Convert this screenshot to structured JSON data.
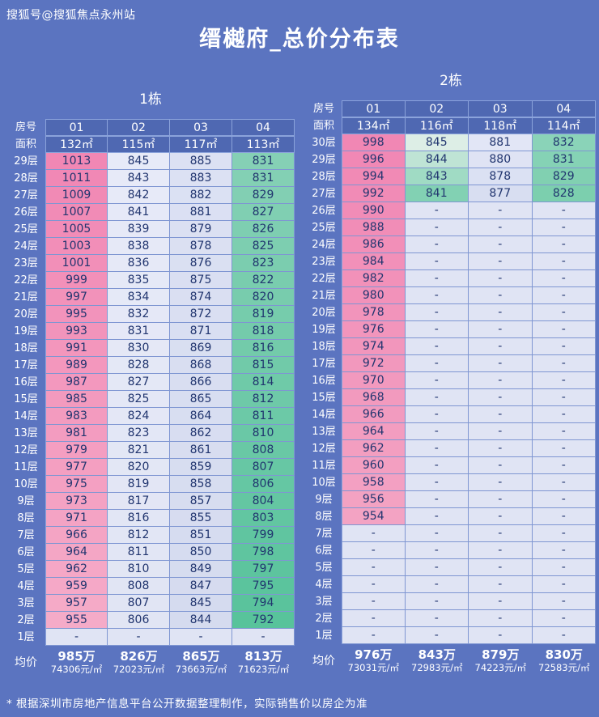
{
  "watermark": "搜狐号@搜狐焦点永州站",
  "title": "缙樾府_总价分布表",
  "footnote": "* 根据深圳市房地产信息平台公开数据整理制作，实际销售价以房企为准",
  "labels": {
    "room": "房号",
    "area": "面积",
    "avg": "均价"
  },
  "colors": {
    "background": "#5b74c0",
    "header_cell_bg": "#4f68b2",
    "grid_line": "#7f96d2",
    "cell_text": "#21356f",
    "empty_cell": "#e0e4f4",
    "text_white": "#ffffff"
  },
  "chart_data": [
    {
      "type": "table",
      "name": "1栋",
      "units": [
        "01",
        "02",
        "03",
        "04"
      ],
      "areas": [
        "132㎡",
        "115㎡",
        "117㎡",
        "113㎡"
      ],
      "floors": [
        "29层",
        "28层",
        "27层",
        "26层",
        "25层",
        "24层",
        "23层",
        "22层",
        "21层",
        "20层",
        "19层",
        "18层",
        "17层",
        "16层",
        "15层",
        "14层",
        "13层",
        "12层",
        "11层",
        "10层",
        "9层",
        "8层",
        "7层",
        "6层",
        "5层",
        "4层",
        "3层",
        "2层",
        "1层"
      ],
      "rows": [
        [
          1013,
          845,
          885,
          831
        ],
        [
          1011,
          843,
          883,
          831
        ],
        [
          1009,
          842,
          882,
          829
        ],
        [
          1007,
          841,
          881,
          827
        ],
        [
          1005,
          839,
          879,
          826
        ],
        [
          1003,
          838,
          878,
          825
        ],
        [
          1001,
          836,
          876,
          823
        ],
        [
          999,
          835,
          875,
          822
        ],
        [
          997,
          834,
          874,
          820
        ],
        [
          995,
          832,
          872,
          819
        ],
        [
          993,
          831,
          871,
          818
        ],
        [
          991,
          830,
          869,
          816
        ],
        [
          989,
          828,
          868,
          815
        ],
        [
          987,
          827,
          866,
          814
        ],
        [
          985,
          825,
          865,
          812
        ],
        [
          983,
          824,
          864,
          811
        ],
        [
          981,
          823,
          862,
          810
        ],
        [
          979,
          821,
          861,
          808
        ],
        [
          977,
          820,
          859,
          807
        ],
        [
          975,
          819,
          858,
          806
        ],
        [
          973,
          817,
          857,
          804
        ],
        [
          971,
          816,
          855,
          803
        ],
        [
          966,
          812,
          851,
          799
        ],
        [
          964,
          811,
          850,
          798
        ],
        [
          962,
          810,
          849,
          797
        ],
        [
          959,
          808,
          847,
          795
        ],
        [
          957,
          807,
          845,
          794
        ],
        [
          955,
          806,
          844,
          792
        ],
        [
          "-",
          "-",
          "-",
          "-"
        ]
      ],
      "avg_total": [
        "985万",
        "826万",
        "865万",
        "813万"
      ],
      "avg_unit": [
        "74306元/㎡",
        "72023元/㎡",
        "73663元/㎡",
        "71623元/㎡"
      ],
      "column_colors": [
        {
          "top": "#f187b4",
          "bottom": "#f5abc8"
        },
        {
          "top": "#e7eaf8",
          "bottom": "#e1e5f4"
        },
        {
          "top": "#dce1f3",
          "bottom": "#d5dbef"
        },
        {
          "top": "#85d0b5",
          "bottom": "#58c39b"
        }
      ]
    },
    {
      "type": "table",
      "name": "2栋",
      "units": [
        "01",
        "02",
        "03",
        "04"
      ],
      "areas": [
        "134㎡",
        "116㎡",
        "118㎡",
        "114㎡"
      ],
      "floors": [
        "30层",
        "29层",
        "28层",
        "27层",
        "26层",
        "25层",
        "24层",
        "23层",
        "22层",
        "21层",
        "20层",
        "19层",
        "18层",
        "17层",
        "16层",
        "15层",
        "14层",
        "13层",
        "12层",
        "11层",
        "10层",
        "9层",
        "8层",
        "7层",
        "6层",
        "5层",
        "4层",
        "3层",
        "2层",
        "1层"
      ],
      "rows": [
        [
          998,
          845,
          881,
          832
        ],
        [
          996,
          844,
          880,
          831
        ],
        [
          994,
          843,
          878,
          829
        ],
        [
          992,
          841,
          877,
          828
        ],
        [
          990,
          "-",
          "-",
          "-"
        ],
        [
          988,
          "-",
          "-",
          "-"
        ],
        [
          986,
          "-",
          "-",
          "-"
        ],
        [
          984,
          "-",
          "-",
          "-"
        ],
        [
          982,
          "-",
          "-",
          "-"
        ],
        [
          980,
          "-",
          "-",
          "-"
        ],
        [
          978,
          "-",
          "-",
          "-"
        ],
        [
          976,
          "-",
          "-",
          "-"
        ],
        [
          974,
          "-",
          "-",
          "-"
        ],
        [
          972,
          "-",
          "-",
          "-"
        ],
        [
          970,
          "-",
          "-",
          "-"
        ],
        [
          968,
          "-",
          "-",
          "-"
        ],
        [
          966,
          "-",
          "-",
          "-"
        ],
        [
          964,
          "-",
          "-",
          "-"
        ],
        [
          962,
          "-",
          "-",
          "-"
        ],
        [
          960,
          "-",
          "-",
          "-"
        ],
        [
          958,
          "-",
          "-",
          "-"
        ],
        [
          956,
          "-",
          "-",
          "-"
        ],
        [
          954,
          "-",
          "-",
          "-"
        ],
        [
          "-",
          "-",
          "-",
          "-"
        ],
        [
          "-",
          "-",
          "-",
          "-"
        ],
        [
          "-",
          "-",
          "-",
          "-"
        ],
        [
          "-",
          "-",
          "-",
          "-"
        ],
        [
          "-",
          "-",
          "-",
          "-"
        ],
        [
          "-",
          "-",
          "-",
          "-"
        ],
        [
          "-",
          "-",
          "-",
          "-"
        ]
      ],
      "avg_total": [
        "976万",
        "843万",
        "879万",
        "830万"
      ],
      "avg_unit": [
        "73031元/㎡",
        "72983元/㎡",
        "74223元/㎡",
        "72583元/㎡"
      ],
      "column_colors": [
        {
          "top": "#f187b4",
          "bottom": "#f3a3c3"
        },
        {
          "top": "#ddeee6",
          "bottom": "#82d1b3"
        },
        {
          "top": "#e2e6f6",
          "bottom": "#d8def1"
        },
        {
          "top": "#8ad3b8",
          "bottom": "#7ccfae"
        }
      ]
    }
  ]
}
